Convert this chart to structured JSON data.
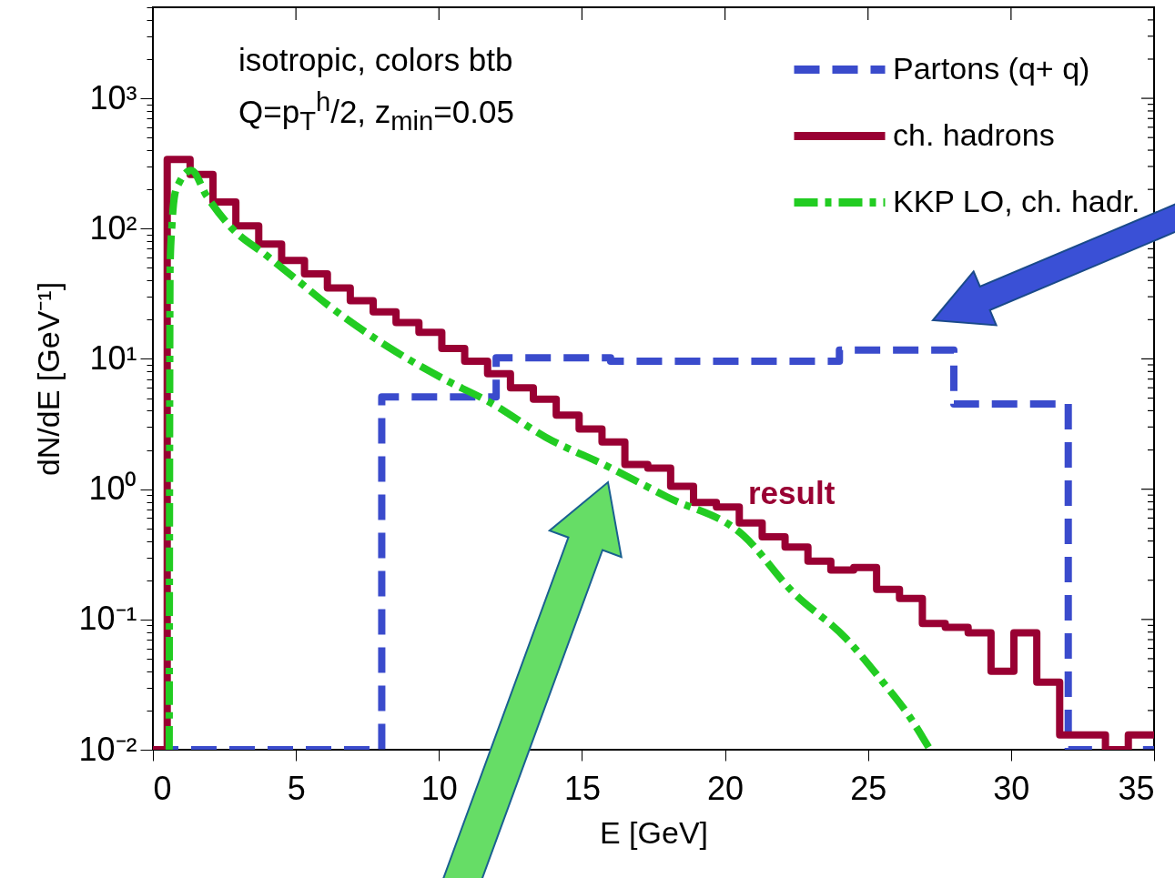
{
  "chart_data": {
    "type": "step",
    "xlabel": "E [GeV]",
    "ylabel": "dN/dE [GeV⁻¹]",
    "log": "y",
    "legend": "top right",
    "grid": false,
    "xlim": [
      0,
      35
    ],
    "xticks": [
      0,
      5,
      10,
      15,
      20,
      25,
      30,
      35
    ],
    "ylim": [
      0.01,
      5000
    ],
    "yticks": [
      {
        "value": 0.01,
        "label": "10⁻²"
      },
      {
        "value": 0.02,
        "label": null
      },
      {
        "value": 0.03,
        "label": null
      },
      {
        "value": 0.04,
        "label": null
      },
      {
        "value": 0.05,
        "label": null
      },
      {
        "value": 0.06,
        "label": null
      },
      {
        "value": 0.07,
        "label": null
      },
      {
        "value": 0.08,
        "label": null
      },
      {
        "value": 0.09,
        "label": null
      },
      {
        "value": 0.1,
        "label": "10⁻¹"
      },
      {
        "value": 0.2,
        "label": null
      },
      {
        "value": 0.3,
        "label": null
      },
      {
        "value": 0.4,
        "label": null
      },
      {
        "value": 0.5,
        "label": null
      },
      {
        "value": 0.6,
        "label": null
      },
      {
        "value": 0.7,
        "label": null
      },
      {
        "value": 0.8,
        "label": null
      },
      {
        "value": 0.9,
        "label": null
      },
      {
        "value": 1,
        "label": "10⁰"
      },
      {
        "value": 2,
        "label": null
      },
      {
        "value": 3,
        "label": null
      },
      {
        "value": 4,
        "label": null
      },
      {
        "value": 5,
        "label": null
      },
      {
        "value": 6,
        "label": null
      },
      {
        "value": 7,
        "label": null
      },
      {
        "value": 8,
        "label": null
      },
      {
        "value": 9,
        "label": null
      },
      {
        "value": 10,
        "label": "10¹"
      },
      {
        "value": 20,
        "label": null
      },
      {
        "value": 30,
        "label": null
      },
      {
        "value": 40,
        "label": null
      },
      {
        "value": 50,
        "label": null
      },
      {
        "value": 60,
        "label": null
      },
      {
        "value": 70,
        "label": null
      },
      {
        "value": 80,
        "label": null
      },
      {
        "value": 90,
        "label": null
      },
      {
        "value": 100,
        "label": "10²"
      },
      {
        "value": 200,
        "label": null
      },
      {
        "value": 300,
        "label": null
      },
      {
        "value": 400,
        "label": null
      },
      {
        "value": 500,
        "label": null
      },
      {
        "value": 600,
        "label": null
      },
      {
        "value": 700,
        "label": null
      },
      {
        "value": 800,
        "label": null
      },
      {
        "value": 900,
        "label": null
      },
      {
        "value": 1000,
        "label": "10³"
      },
      {
        "value": 2000,
        "label": null
      },
      {
        "value": 3000,
        "label": null
      },
      {
        "value": 4000,
        "label": null
      },
      {
        "value": 5000,
        "label": null
      }
    ],
    "series": [
      {
        "name": "Partons (q+ q)",
        "color": "#3a4bcc",
        "line_style": "dashed",
        "x": [
          0,
          8,
          12,
          16,
          24,
          28,
          32,
          35
        ],
        "values": [
          0.01,
          5.1,
          10.2,
          9.6,
          11.7,
          4.5,
          0.01,
          0.01
        ]
      },
      {
        "name": "ch. hadrons",
        "color": "#990033",
        "line_style": "solid",
        "x": [
          0,
          0.5,
          1.3,
          2.1,
          2.9,
          3.7,
          4.5,
          5.3,
          6.1,
          6.9,
          7.7,
          8.5,
          9.3,
          10.1,
          10.9,
          11.7,
          12.5,
          13.3,
          14.1,
          14.9,
          15.7,
          16.5,
          17.3,
          18.1,
          18.9,
          19.7,
          20.5,
          21.3,
          22.1,
          22.9,
          23.7,
          24.5,
          25.3,
          26.1,
          26.9,
          27.7,
          28.5,
          29.3,
          30.1,
          30.9,
          31.7,
          32.5,
          33.3,
          34.1,
          34.9,
          35
        ],
        "values": [
          0.01,
          340,
          260,
          160,
          105,
          76,
          57,
          45,
          35,
          28,
          23,
          19,
          16,
          12,
          9.6,
          7.7,
          6.0,
          4.9,
          3.7,
          2.9,
          2.3,
          1.55,
          1.45,
          1.05,
          0.79,
          0.73,
          0.55,
          0.43,
          0.36,
          0.28,
          0.24,
          0.25,
          0.17,
          0.145,
          0.093,
          0.087,
          0.079,
          0.04,
          0.079,
          0.033,
          0.013,
          0.013,
          0.01,
          0.013,
          0.013,
          0.013
        ]
      },
      {
        "name": "KKP LO, ch. hadr.",
        "color": "#22cc22",
        "line_style": "dashdot",
        "type": "line",
        "x": [
          0.57,
          0.6,
          0.67,
          0.76,
          0.92,
          1.34,
          1.88,
          2.7,
          3.98,
          5.06,
          6.11,
          8.24,
          10.34,
          11.74,
          13.74,
          15.88,
          17.98,
          20.65,
          22.34,
          24.24,
          25.52,
          26.41,
          27.17
        ],
        "values": [
          0.01,
          50,
          110,
          180,
          225,
          280,
          178,
          104,
          62,
          40,
          26,
          12.3,
          6.7,
          4.7,
          2.5,
          1.5,
          0.87,
          0.44,
          0.165,
          0.071,
          0.033,
          0.0185,
          0.01
        ]
      }
    ],
    "annotations": [
      "isotropic, colors btb",
      "Q=p$_{T}$$^{h}$/2, z$_{min}$=0.05",
      "result"
    ]
  }
}
